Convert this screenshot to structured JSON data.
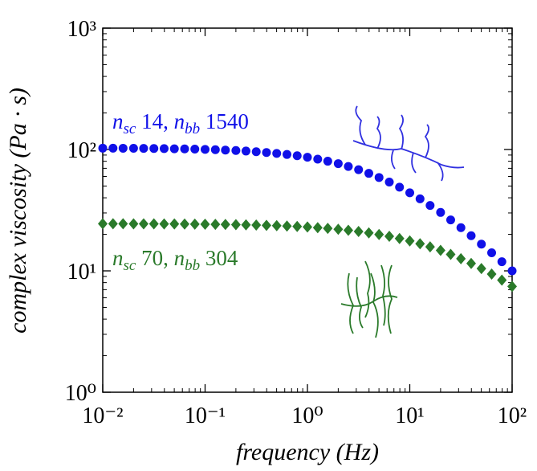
{
  "chart_data": {
    "type": "scatter",
    "xlabel": "frequency (Hz)",
    "ylabel": "complex viscosity (Pa · s)",
    "log_x": true,
    "log_y": true,
    "xlim": [
      0.01,
      100
    ],
    "ylim": [
      1,
      1000
    ],
    "xticks": [
      {
        "value": 0.01,
        "label": "10⁻²"
      },
      {
        "value": 0.1,
        "label": "10⁻¹"
      },
      {
        "value": 1,
        "label": "10⁰"
      },
      {
        "value": 10,
        "label": "10¹"
      },
      {
        "value": 100,
        "label": "10²"
      }
    ],
    "yticks": [
      {
        "value": 1,
        "label": "10⁰"
      },
      {
        "value": 10,
        "label": "10¹"
      },
      {
        "value": 100,
        "label": "10²"
      },
      {
        "value": 1000,
        "label": "10³"
      }
    ],
    "x": [
      0.01,
      0.0126,
      0.0158,
      0.02,
      0.0251,
      0.0316,
      0.0398,
      0.0501,
      0.0631,
      0.0794,
      0.1,
      0.126,
      0.158,
      0.2,
      0.251,
      0.316,
      0.398,
      0.501,
      0.631,
      0.794,
      1,
      1.26,
      1.58,
      2,
      2.51,
      3.16,
      3.98,
      5.01,
      6.31,
      7.94,
      10,
      12.6,
      15.8,
      20,
      25.1,
      31.6,
      39.8,
      50.1,
      63.1,
      79.4,
      100
    ],
    "series": [
      {
        "color": "#1010e8",
        "marker": "circle",
        "values": [
          102.6,
          102.5,
          102.4,
          102.3,
          102.1,
          101.9,
          101.7,
          101.4,
          101.1,
          100.7,
          100.2,
          99.6,
          98.9,
          98.1,
          97.1,
          95.9,
          94.5,
          92.9,
          91.0,
          88.8,
          86.3,
          83.3,
          80.1,
          76.5,
          72.5,
          68.2,
          63.6,
          58.8,
          53.9,
          48.9,
          44.0,
          39.2,
          34.6,
          30.3,
          26.3,
          22.7,
          19.5,
          16.6,
          14.1,
          11.9,
          10.0
        ]
      },
      {
        "color": "#2a7a2a",
        "marker": "diamond",
        "values": [
          24.45,
          24.44,
          24.43,
          24.42,
          24.4,
          24.39,
          24.37,
          24.34,
          24.31,
          24.27,
          24.23,
          24.18,
          24.11,
          24.04,
          23.95,
          23.85,
          23.73,
          23.58,
          23.42,
          23.22,
          22.98,
          22.71,
          22.39,
          22.02,
          21.6,
          21.12,
          20.56,
          19.94,
          19.25,
          18.48,
          17.64,
          16.73,
          15.76,
          14.74,
          13.68,
          12.6,
          11.52,
          10.44,
          9.4,
          8.39,
          7.44
        ]
      }
    ],
    "annotations": [
      {
        "text": [
          "n",
          "sc",
          " 14, ",
          "n",
          "bb",
          " 1540"
        ],
        "color": "#1010e8"
      },
      {
        "text": [
          "n",
          "sc",
          " 70, ",
          "n",
          "bb",
          " 304"
        ],
        "color": "#2a7a2a"
      }
    ]
  }
}
